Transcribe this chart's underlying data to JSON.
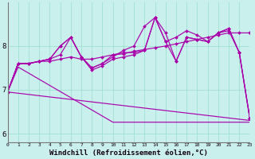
{
  "background_color": "#caf0ee",
  "grid_color": "#99ddcc",
  "line_color": "#aa00aa",
  "xlabel": "Windchill (Refroidissement éolien,°C)",
  "xlabel_fontsize": 6.5,
  "yticks": [
    6,
    7,
    8
  ],
  "xticks": [
    0,
    1,
    2,
    3,
    4,
    5,
    6,
    7,
    8,
    9,
    10,
    11,
    12,
    13,
    14,
    15,
    16,
    17,
    18,
    19,
    20,
    21,
    22,
    23
  ],
  "ylim": [
    5.8,
    9.0
  ],
  "xlim": [
    0,
    23
  ],
  "figwidth": 3.2,
  "figheight": 2.0,
  "series": [
    {
      "y": [
        6.95,
        7.6,
        7.6,
        7.65,
        7.7,
        8.0,
        8.2,
        7.75,
        7.5,
        7.6,
        7.8,
        7.85,
        7.85,
        7.9,
        8.65,
        8.3,
        7.65,
        8.2,
        8.15,
        8.1,
        8.3,
        8.4,
        7.85,
        6.35
      ],
      "marker": true,
      "dashed": false
    },
    {
      "y": [
        6.95,
        7.6,
        7.6,
        7.65,
        7.7,
        8.0,
        8.2,
        7.75,
        7.5,
        7.6,
        7.75,
        7.9,
        8.0,
        8.45,
        8.65,
        8.1,
        8.2,
        8.35,
        8.25,
        8.1,
        8.3,
        8.4,
        7.85,
        6.35
      ],
      "marker": true,
      "dashed": false
    },
    {
      "y": [
        6.95,
        7.6,
        7.6,
        7.65,
        7.7,
        7.8,
        8.2,
        7.75,
        7.45,
        7.55,
        7.7,
        7.75,
        7.8,
        7.9,
        8.65,
        8.1,
        7.65,
        8.2,
        8.15,
        8.1,
        8.3,
        8.35,
        7.85,
        6.35
      ],
      "marker": true,
      "dashed": false
    },
    {
      "y": [
        6.95,
        7.6,
        7.6,
        7.65,
        7.65,
        7.7,
        7.75,
        7.7,
        7.7,
        7.75,
        7.8,
        7.82,
        7.88,
        7.92,
        7.96,
        8.0,
        8.05,
        8.1,
        8.15,
        8.2,
        8.25,
        8.3,
        8.3,
        8.3
      ],
      "marker": true,
      "dashed": false
    },
    {
      "y": [
        6.95,
        7.52,
        7.38,
        7.24,
        7.1,
        6.96,
        6.82,
        6.68,
        6.54,
        6.4,
        6.26,
        6.26,
        6.26,
        6.26,
        6.26,
        6.26,
        6.26,
        6.26,
        6.26,
        6.26,
        6.26,
        6.26,
        6.26,
        6.26
      ],
      "marker": false,
      "dashed": false
    }
  ]
}
